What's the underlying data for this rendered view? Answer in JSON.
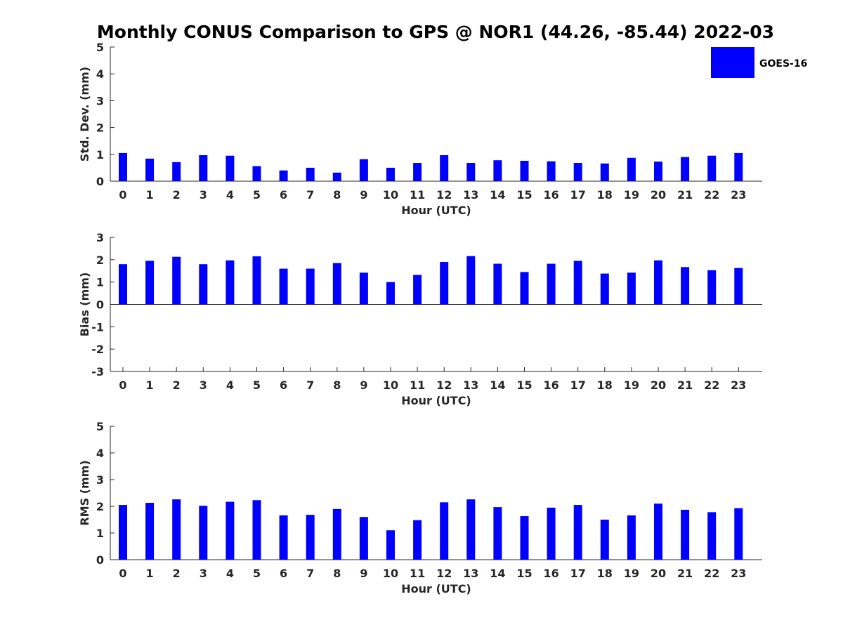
{
  "title": "Monthly CONUS Comparison to GPS @ NOR1 (44.26, -85.44) 2022-03",
  "legend": {
    "label": "GOES-16",
    "color": "#0000ff",
    "placement": "top-right"
  },
  "bar_color": "#0000ff",
  "chart_data": [
    {
      "type": "bar",
      "ylabel": "Std. Dev. (mm)",
      "xlabel": "Hour (UTC)",
      "ylim": [
        0,
        5
      ],
      "yticks": [
        0,
        1,
        2,
        3,
        4,
        5
      ],
      "categories": [
        0,
        1,
        2,
        3,
        4,
        5,
        6,
        7,
        8,
        9,
        10,
        11,
        12,
        13,
        14,
        15,
        16,
        17,
        18,
        19,
        20,
        21,
        22,
        23
      ],
      "series": [
        {
          "name": "GOES-16",
          "values": [
            1.05,
            0.84,
            0.71,
            0.97,
            0.95,
            0.56,
            0.4,
            0.5,
            0.32,
            0.82,
            0.5,
            0.68,
            0.97,
            0.68,
            0.78,
            0.76,
            0.74,
            0.68,
            0.66,
            0.87,
            0.73,
            0.9,
            0.95,
            1.05
          ]
        }
      ],
      "grid": false
    },
    {
      "type": "bar",
      "ylabel": "Bias (mm)",
      "xlabel": "Hour (UTC)",
      "ylim": [
        -3,
        3
      ],
      "yticks": [
        -3,
        -2,
        -1,
        0,
        1,
        2,
        3
      ],
      "categories": [
        0,
        1,
        2,
        3,
        4,
        5,
        6,
        7,
        8,
        9,
        10,
        11,
        12,
        13,
        14,
        15,
        16,
        17,
        18,
        19,
        20,
        21,
        22,
        23
      ],
      "series": [
        {
          "name": "GOES-16",
          "values": [
            1.8,
            1.95,
            2.13,
            1.8,
            1.97,
            2.15,
            1.6,
            1.6,
            1.85,
            1.42,
            1.0,
            1.32,
            1.9,
            2.16,
            1.82,
            1.45,
            1.82,
            1.95,
            1.38,
            1.42,
            1.97,
            1.67,
            1.53,
            1.63
          ]
        }
      ],
      "grid": false
    },
    {
      "type": "bar",
      "ylabel": "RMS (mm)",
      "xlabel": "Hour (UTC)",
      "ylim": [
        0,
        5
      ],
      "yticks": [
        0,
        1,
        2,
        3,
        4,
        5
      ],
      "categories": [
        0,
        1,
        2,
        3,
        4,
        5,
        6,
        7,
        8,
        9,
        10,
        11,
        12,
        13,
        14,
        15,
        16,
        17,
        18,
        19,
        20,
        21,
        22,
        23
      ],
      "series": [
        {
          "name": "GOES-16",
          "values": [
            2.05,
            2.13,
            2.26,
            2.02,
            2.17,
            2.23,
            1.66,
            1.68,
            1.9,
            1.6,
            1.1,
            1.48,
            2.15,
            2.26,
            1.97,
            1.63,
            1.95,
            2.05,
            1.5,
            1.66,
            2.1,
            1.87,
            1.78,
            1.93
          ]
        }
      ],
      "grid": false
    }
  ]
}
